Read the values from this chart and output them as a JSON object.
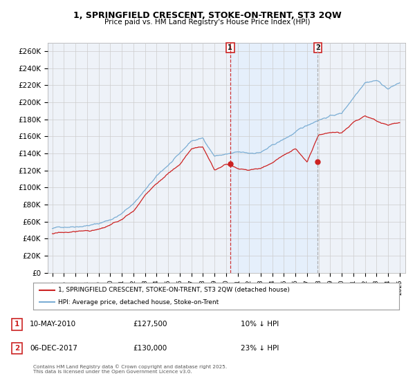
{
  "title": "1, SPRINGFIELD CRESCENT, STOKE-ON-TRENT, ST3 2QW",
  "subtitle": "Price paid vs. HM Land Registry's House Price Index (HPI)",
  "ylim": [
    0,
    270000
  ],
  "yticks": [
    0,
    20000,
    40000,
    60000,
    80000,
    100000,
    120000,
    140000,
    160000,
    180000,
    200000,
    220000,
    240000,
    260000
  ],
  "ytick_labels": [
    "£0",
    "£20K",
    "£40K",
    "£60K",
    "£80K",
    "£100K",
    "£120K",
    "£140K",
    "£160K",
    "£180K",
    "£200K",
    "£220K",
    "£240K",
    "£260K"
  ],
  "hpi_color": "#7aadd4",
  "price_color": "#cc2222",
  "vline1_color": "#cc2222",
  "vline1_style": "--",
  "vline2_color": "#aaaaaa",
  "vline2_style": "--",
  "shade_color": "#ddeeff",
  "shade_alpha": 0.5,
  "plot_bg_color": "#eef2f8",
  "grid_color": "#cccccc",
  "sale1_year": 2010.36,
  "sale1_price": 127500,
  "sale2_year": 2017.92,
  "sale2_price": 130000,
  "legend_line1": "1, SPRINGFIELD CRESCENT, STOKE-ON-TRENT, ST3 2QW (detached house)",
  "legend_line2": "HPI: Average price, detached house, Stoke-on-Trent",
  "footer": "Contains HM Land Registry data © Crown copyright and database right 2025.\nThis data is licensed under the Open Government Licence v3.0.",
  "year_start": 1995,
  "year_end": 2025,
  "hpi_anchors_years": [
    1995,
    1996,
    1997,
    1998,
    1999,
    2000,
    2001,
    2002,
    2003,
    2004,
    2005,
    2006,
    2007,
    2008,
    2009,
    2010,
    2011,
    2012,
    2013,
    2014,
    2015,
    2016,
    2017,
    2018,
    2019,
    2020,
    2021,
    2022,
    2023,
    2024,
    2025
  ],
  "hpi_anchors_vals": [
    52000,
    54000,
    56000,
    58000,
    60000,
    65000,
    72000,
    84000,
    100000,
    115000,
    128000,
    140000,
    155000,
    158000,
    138000,
    140000,
    141000,
    139000,
    141000,
    148000,
    155000,
    163000,
    170000,
    178000,
    183000,
    186000,
    205000,
    225000,
    228000,
    218000,
    225000
  ],
  "price_anchors_years": [
    1995,
    1996,
    1997,
    1998,
    1999,
    2000,
    2001,
    2002,
    2003,
    2004,
    2005,
    2006,
    2007,
    2008,
    2009,
    2010,
    2011,
    2012,
    2013,
    2014,
    2015,
    2016,
    2017,
    2018,
    2019,
    2020,
    2021,
    2022,
    2023,
    2024,
    2025
  ],
  "price_anchors_vals": [
    46000,
    47000,
    48000,
    49000,
    50000,
    54000,
    60000,
    70000,
    88000,
    102000,
    114000,
    124000,
    142000,
    145000,
    118000,
    127500,
    122000,
    120000,
    123000,
    130000,
    138000,
    145000,
    130000,
    160000,
    163000,
    162000,
    175000,
    182000,
    175000,
    170000,
    173000
  ]
}
